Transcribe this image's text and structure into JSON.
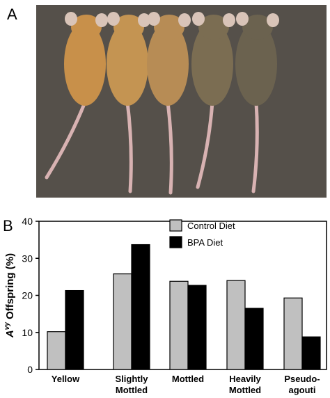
{
  "panels": {
    "a": "A",
    "b": "B"
  },
  "photo": {
    "background": "#55504a",
    "mice": [
      {
        "fur": "#c8904a",
        "tail": "#d8b2b2"
      },
      {
        "fur": "#c49452",
        "tail": "#d8b2b2"
      },
      {
        "fur": "#b78c55",
        "tail": "#d8b2b2"
      },
      {
        "fur": "#7b6d52",
        "tail": "#d8b2b2"
      },
      {
        "fur": "#6b624f",
        "tail": "#d8b2b2"
      }
    ]
  },
  "chart_data": {
    "type": "bar",
    "ylabel_prefix": "A",
    "ylabel_superscript": "vy",
    "ylabel_suffix": " Offspring (%)",
    "ylim": [
      0,
      40
    ],
    "yticks": [
      0,
      10,
      20,
      30,
      40
    ],
    "grid": false,
    "legend_position": "top-right",
    "categories": [
      {
        "line1": "Yellow",
        "line2": ""
      },
      {
        "line1": "Slightly",
        "line2": "Mottled"
      },
      {
        "line1": "Mottled",
        "line2": ""
      },
      {
        "line1": "Heavily",
        "line2": "Mottled"
      },
      {
        "line1": "Pseudo-",
        "line2": "agouti"
      }
    ],
    "series": [
      {
        "name": "Control Diet",
        "color": "#c0c0c0",
        "values": [
          10.2,
          25.8,
          23.8,
          24.0,
          19.3
        ]
      },
      {
        "name": "BPA Diet",
        "color": "#000000",
        "values": [
          21.3,
          33.7,
          22.7,
          16.5,
          8.8
        ]
      }
    ]
  }
}
